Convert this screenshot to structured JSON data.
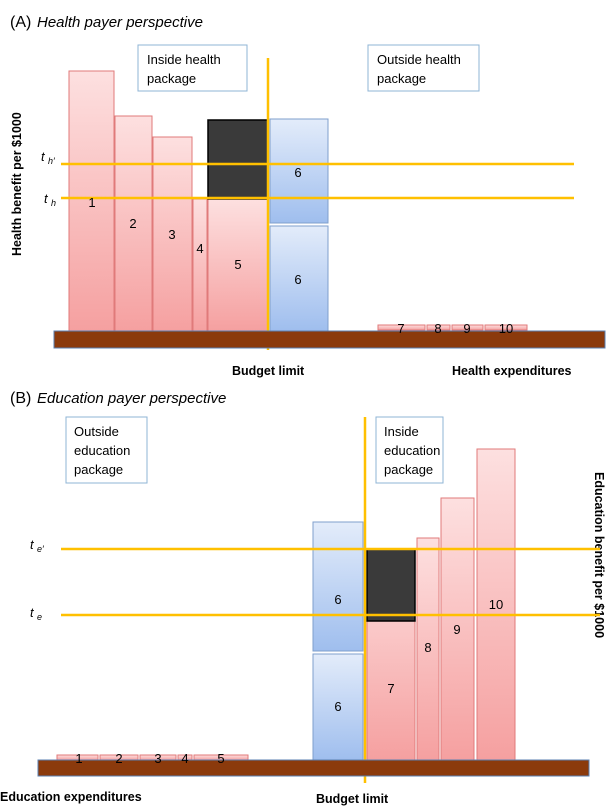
{
  "panelA": {
    "label": "(A)",
    "title": "Health payer perspective",
    "inside_box": [
      "Inside health",
      "package"
    ],
    "outside_box": [
      "Outside health",
      "package"
    ],
    "y_axis_label": "Health benefit per $1000",
    "threshold_upper": {
      "base": "t",
      "sub": "h′"
    },
    "threshold_lower": {
      "base": "t",
      "sub": "h"
    },
    "budget_label": "Budget limit",
    "x_axis_label": "Health expenditures",
    "bars_inside": [
      "1",
      "2",
      "3",
      "4",
      "5"
    ],
    "bar6_top": "6",
    "bar6_bottom": "6",
    "bars_outside": [
      "7",
      "8",
      "9",
      "10"
    ]
  },
  "panelB": {
    "label": "(B)",
    "title": "Education payer perspective",
    "outside_box": [
      "Outside",
      "education",
      "package"
    ],
    "inside_box": [
      "Inside",
      "education",
      "package"
    ],
    "y_axis_label": "Education benefit per $1000",
    "threshold_upper": {
      "base": "t",
      "sub": "e′"
    },
    "threshold_lower": {
      "base": "t",
      "sub": "e"
    },
    "budget_label": "Budget limit",
    "x_axis_label": "Education expenditures",
    "bars_outside": [
      "1",
      "2",
      "3",
      "4",
      "5"
    ],
    "bar6_top": "6",
    "bar6_bottom": "6",
    "bars_inside": [
      "7",
      "8",
      "9",
      "10"
    ]
  },
  "colors": {
    "red_bar_top": "#fbd3d3",
    "red_bar_bottom": "#f7a0a0",
    "blue_bar_top": "#dce7f8",
    "blue_bar_bottom": "#a7c3ef",
    "dark_block": "#3a3a3a",
    "threshold": "#ffc000",
    "ground": "#8b3a0c",
    "box_border": "#8fb4d6"
  }
}
